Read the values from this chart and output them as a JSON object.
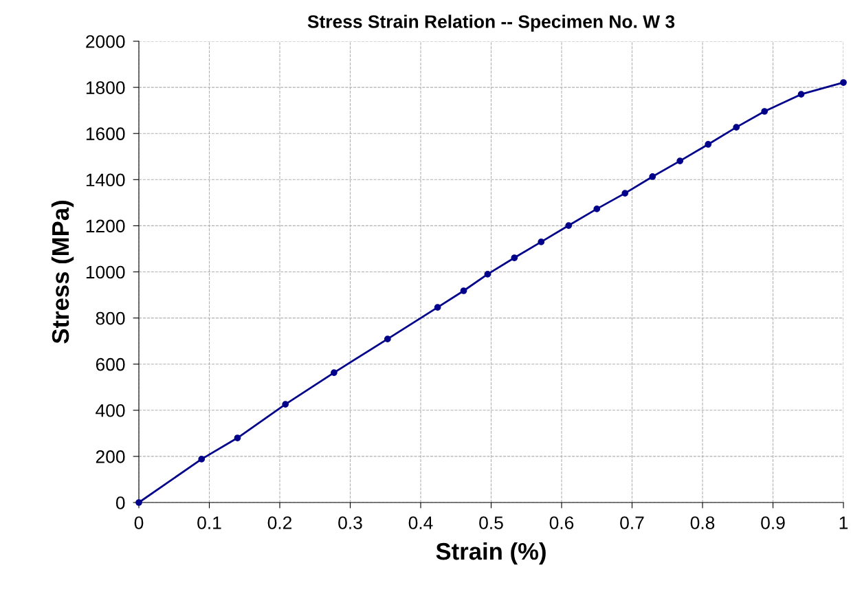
{
  "chart_data": {
    "type": "line",
    "title": "Stress Strain Relation -- Specimen No. W 3",
    "xlabel": "Strain (%)",
    "ylabel": "Stress (MPa)",
    "series": [
      {
        "color": "#00008b",
        "x": [
          0,
          0.089,
          0.14,
          0.208,
          0.277,
          0.353,
          0.424,
          0.461,
          0.495,
          0.533,
          0.571,
          0.61,
          0.65,
          0.69,
          0.729,
          0.768,
          0.808,
          0.848,
          0.888,
          0.94,
          1.0
        ],
        "values": [
          0,
          188,
          280,
          426,
          563,
          709,
          846,
          918,
          990,
          1061,
          1130,
          1201,
          1273,
          1341,
          1413,
          1481,
          1553,
          1627,
          1696,
          1770,
          1821
        ]
      }
    ],
    "xlim": [
      0,
      1
    ],
    "xticks": [
      0,
      0.1,
      0.2,
      0.3,
      0.4,
      0.5,
      0.6,
      0.7,
      0.8,
      0.9,
      1
    ],
    "ylim": [
      0,
      2000
    ],
    "yticks": [
      0,
      200,
      400,
      600,
      800,
      1000,
      1200,
      1400,
      1600,
      1800,
      2000
    ],
    "grid": true,
    "marker": "circle",
    "line_style": "solid",
    "legend": false
  }
}
